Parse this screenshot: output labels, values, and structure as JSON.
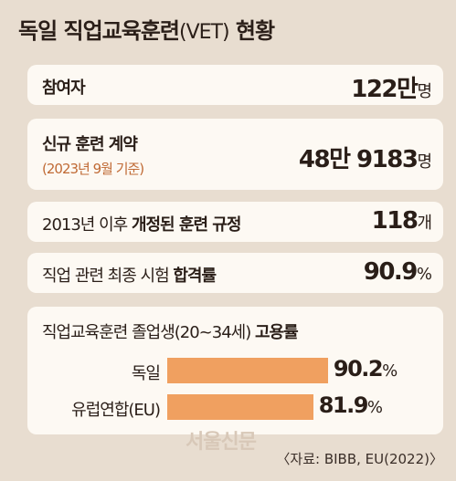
{
  "title": {
    "main": "독일 직업교육훈련",
    "paren": "(VET)",
    "tail": " 현황"
  },
  "stats": [
    {
      "label": "참여자",
      "value": "122만",
      "unit": "명"
    },
    {
      "label": "신규 훈련 계약",
      "sublabel": "(2023년 9월 기준)",
      "value": "48만 9183",
      "unit": "명"
    },
    {
      "label_pre": "2013년 이후 ",
      "label_bold": "개정된 훈련 규정",
      "value": "118",
      "unit": "개"
    },
    {
      "label_pre": "직업 관련 최종 시험 ",
      "label_bold": "합격률",
      "value": "90.9",
      "unit": "%"
    }
  ],
  "employment": {
    "heading_pre": "직업교육훈련 졸업생(20~34세) ",
    "heading_bold": "고용률"
  },
  "chart_data": {
    "type": "bar",
    "orientation": "horizontal",
    "categories": [
      "독일",
      "유럽연합(EU)"
    ],
    "values": [
      90.2,
      81.9
    ],
    "value_labels": [
      "90.2",
      "81.9"
    ],
    "unit": "%",
    "colors": {
      "bar": "#f0a060"
    }
  },
  "watermark": "서울신문",
  "source": "〈자료: BIBB, EU(2022)〉"
}
